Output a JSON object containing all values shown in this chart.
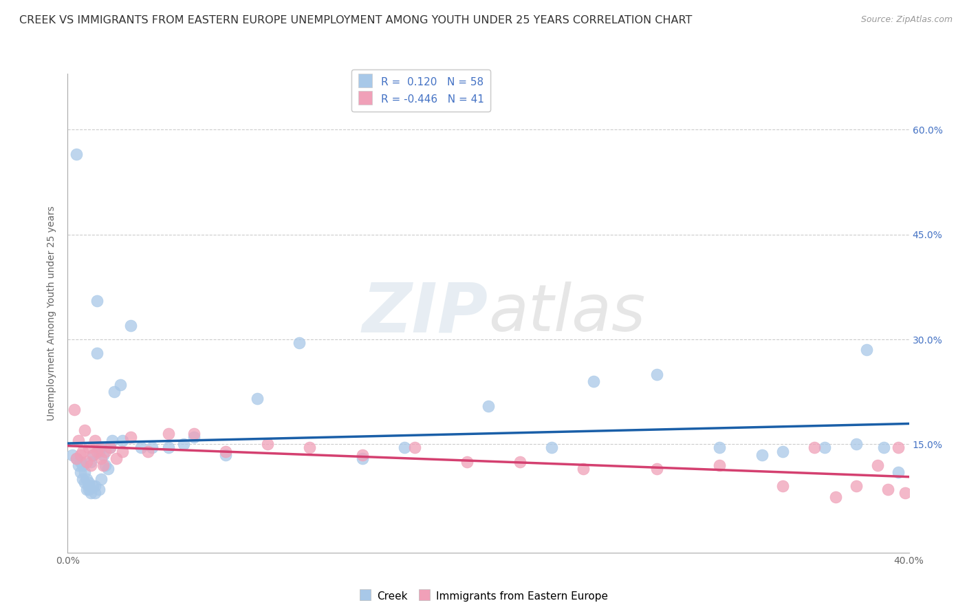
{
  "title": "CREEK VS IMMIGRANTS FROM EASTERN EUROPE UNEMPLOYMENT AMONG YOUTH UNDER 25 YEARS CORRELATION CHART",
  "source": "Source: ZipAtlas.com",
  "ylabel": "Unemployment Among Youth under 25 years",
  "yticks_labels": [
    "15.0%",
    "30.0%",
    "45.0%",
    "60.0%"
  ],
  "ytick_values": [
    0.15,
    0.3,
    0.45,
    0.6
  ],
  "xlim": [
    0.0,
    0.4
  ],
  "ylim": [
    -0.005,
    0.68
  ],
  "legend_label1": "Creek",
  "legend_label2": "Immigrants from Eastern Europe",
  "r1": 0.12,
  "n1": 58,
  "r2": -0.446,
  "n2": 41,
  "creek_color": "#a8c8e8",
  "immigrants_color": "#f0a0b8",
  "creek_line_color": "#1a5fa8",
  "immigrants_line_color": "#d44070",
  "creek_x": [
    0.002,
    0.004,
    0.004,
    0.005,
    0.006,
    0.006,
    0.007,
    0.007,
    0.008,
    0.008,
    0.009,
    0.009,
    0.01,
    0.01,
    0.01,
    0.011,
    0.011,
    0.012,
    0.012,
    0.013,
    0.013,
    0.014,
    0.014,
    0.015,
    0.015,
    0.016,
    0.016,
    0.017,
    0.018,
    0.019,
    0.02,
    0.021,
    0.022,
    0.025,
    0.026,
    0.03,
    0.035,
    0.04,
    0.048,
    0.055,
    0.06,
    0.075,
    0.09,
    0.11,
    0.14,
    0.16,
    0.2,
    0.23,
    0.25,
    0.28,
    0.31,
    0.33,
    0.34,
    0.36,
    0.375,
    0.38,
    0.388,
    0.395
  ],
  "creek_y": [
    0.135,
    0.565,
    0.13,
    0.12,
    0.125,
    0.11,
    0.12,
    0.1,
    0.11,
    0.095,
    0.1,
    0.085,
    0.095,
    0.09,
    0.085,
    0.08,
    0.125,
    0.135,
    0.09,
    0.09,
    0.08,
    0.355,
    0.28,
    0.085,
    0.14,
    0.1,
    0.145,
    0.135,
    0.12,
    0.115,
    0.145,
    0.155,
    0.225,
    0.235,
    0.155,
    0.32,
    0.145,
    0.145,
    0.145,
    0.15,
    0.16,
    0.135,
    0.215,
    0.295,
    0.13,
    0.145,
    0.205,
    0.145,
    0.24,
    0.25,
    0.145,
    0.135,
    0.14,
    0.145,
    0.15,
    0.285,
    0.145,
    0.11
  ],
  "immigrants_x": [
    0.003,
    0.004,
    0.005,
    0.006,
    0.007,
    0.008,
    0.009,
    0.01,
    0.011,
    0.012,
    0.013,
    0.014,
    0.015,
    0.016,
    0.017,
    0.018,
    0.02,
    0.023,
    0.026,
    0.03,
    0.038,
    0.048,
    0.06,
    0.075,
    0.095,
    0.115,
    0.14,
    0.165,
    0.19,
    0.215,
    0.245,
    0.28,
    0.31,
    0.34,
    0.355,
    0.365,
    0.375,
    0.385,
    0.39,
    0.395,
    0.398
  ],
  "immigrants_y": [
    0.2,
    0.13,
    0.155,
    0.135,
    0.14,
    0.17,
    0.125,
    0.145,
    0.12,
    0.135,
    0.155,
    0.14,
    0.145,
    0.13,
    0.12,
    0.14,
    0.145,
    0.13,
    0.14,
    0.16,
    0.14,
    0.165,
    0.165,
    0.14,
    0.15,
    0.145,
    0.135,
    0.145,
    0.125,
    0.125,
    0.115,
    0.115,
    0.12,
    0.09,
    0.145,
    0.075,
    0.09,
    0.12,
    0.085,
    0.145,
    0.08
  ],
  "watermark_zip": "ZIP",
  "watermark_atlas": "atlas",
  "grid_color": "#cccccc",
  "background_color": "#ffffff",
  "title_fontsize": 11.5,
  "axis_label_fontsize": 10,
  "tick_fontsize": 10,
  "legend_fontsize": 11
}
